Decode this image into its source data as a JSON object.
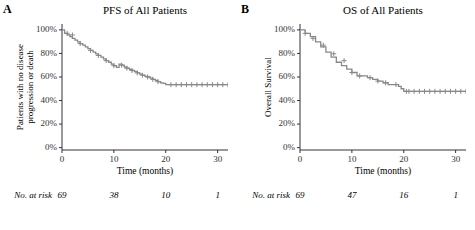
{
  "chart_data": [
    {
      "type": "line",
      "title": "PFS of All Patients",
      "annotations": [
        "A"
      ],
      "x_label": "Time (months)",
      "y_label": "Patients with no disease\nprogression or death",
      "xlim": [
        0,
        32
      ],
      "ylim": [
        -0.02,
        1.05
      ],
      "xticks": [
        0,
        10,
        20,
        30
      ],
      "yticks": [
        {
          "value": 0,
          "label": "0%"
        },
        {
          "value": 0.2,
          "label": "20%"
        },
        {
          "value": 0.4,
          "label": "40%"
        },
        {
          "value": 0.6,
          "label": "60%"
        },
        {
          "value": 0.8,
          "label": "80%"
        },
        {
          "value": 1.0,
          "label": "100%"
        }
      ],
      "grid": false,
      "series": [
        {
          "type": "step",
          "color": "#888888",
          "x": [
            0,
            0.5,
            1.0,
            1.5,
            2.0,
            2.5,
            3.0,
            3.5,
            4.0,
            4.5,
            5.0,
            5.5,
            6.0,
            6.5,
            7.0,
            7.5,
            8.0,
            8.5,
            9.0,
            9.5,
            10.0,
            10.5,
            11.0,
            11.5,
            12.0,
            12.5,
            13.0,
            13.5,
            14.0,
            14.5,
            15.0,
            15.5,
            16.0,
            16.5,
            17.0,
            17.5,
            18.0,
            18.5,
            19.0,
            19.5,
            20.0,
            21.0,
            22.0,
            23.0,
            24.0,
            25.0,
            26.0,
            27.0,
            28.0,
            29.0,
            30.0,
            31.0,
            32.0
          ],
          "values": [
            1.0,
            0.971,
            0.957,
            0.942,
            0.928,
            0.913,
            0.899,
            0.884,
            0.87,
            0.855,
            0.841,
            0.826,
            0.812,
            0.797,
            0.783,
            0.768,
            0.754,
            0.739,
            0.725,
            0.71,
            0.696,
            0.681,
            0.71,
            0.7,
            0.685,
            0.675,
            0.665,
            0.655,
            0.645,
            0.635,
            0.625,
            0.615,
            0.605,
            0.6,
            0.59,
            0.58,
            0.57,
            0.56,
            0.55,
            0.545,
            0.535,
            0.535,
            0.535,
            0.535,
            0.535,
            0.535,
            0.535,
            0.535,
            0.535,
            0.535,
            0.535,
            0.535,
            0.535
          ]
        },
        {
          "type": "scatter",
          "marker": "plus",
          "color": "#888888",
          "x": [
            1.0,
            2.0,
            3.5,
            5.5,
            7.0,
            8.5,
            10.0,
            11.5,
            12.5,
            13.5,
            14.5,
            15.5,
            16.5,
            17.5,
            18.5,
            21.0,
            22.0,
            23.0,
            24.0,
            25.0,
            26.0,
            27.0,
            28.0,
            29.0,
            30.0,
            31.0,
            32.0
          ],
          "values": [
            0.971,
            0.957,
            0.884,
            0.826,
            0.783,
            0.739,
            0.696,
            0.7,
            0.675,
            0.655,
            0.635,
            0.615,
            0.6,
            0.58,
            0.56,
            0.535,
            0.535,
            0.535,
            0.535,
            0.535,
            0.535,
            0.535,
            0.535,
            0.535,
            0.535,
            0.535,
            0.535
          ]
        }
      ],
      "at_risk": {
        "label": "No. at risk",
        "x": [
          0,
          10,
          20,
          30
        ],
        "values": [
          69,
          38,
          10,
          1
        ]
      }
    },
    {
      "type": "line",
      "title": "OS of All Patients",
      "annotations": [
        "B"
      ],
      "x_label": "Time (months)",
      "y_label": "Overall Survival",
      "xlim": [
        0,
        32
      ],
      "ylim": [
        -0.02,
        1.05
      ],
      "xticks": [
        0,
        10,
        20,
        30
      ],
      "yticks": [
        {
          "value": 0,
          "label": "0%"
        },
        {
          "value": 0.2,
          "label": "20%"
        },
        {
          "value": 0.4,
          "label": "40%"
        },
        {
          "value": 0.6,
          "label": "60%"
        },
        {
          "value": 0.8,
          "label": "80%"
        },
        {
          "value": 1.0,
          "label": "100%"
        }
      ],
      "grid": false,
      "series": [
        {
          "type": "step",
          "color": "#888888",
          "x": [
            0,
            1.0,
            2.0,
            3.0,
            4.0,
            5.0,
            6.0,
            7.0,
            8.0,
            9.0,
            10.0,
            11.0,
            12.0,
            13.0,
            14.0,
            15.0,
            16.0,
            17.0,
            18.0,
            19.0,
            19.5,
            20.0,
            21.0,
            22.0,
            23.0,
            24.0,
            25.0,
            26.0,
            27.0,
            28.0,
            29.0,
            30.0,
            31.0,
            32.0
          ],
          "values": [
            1.0,
            0.971,
            0.942,
            0.899,
            0.855,
            0.812,
            0.768,
            0.725,
            0.696,
            0.667,
            0.638,
            0.609,
            0.609,
            0.594,
            0.58,
            0.565,
            0.551,
            0.536,
            0.536,
            0.521,
            0.5,
            0.478,
            0.478,
            0.478,
            0.478,
            0.478,
            0.478,
            0.478,
            0.478,
            0.478,
            0.478,
            0.478,
            0.478,
            0.478
          ]
        },
        {
          "type": "scatter",
          "marker": "plus",
          "color": "#888888",
          "x": [
            1.0,
            2.5,
            4.5,
            6.5,
            8.5,
            10.0,
            11.5,
            13.5,
            15.0,
            16.5,
            18.5,
            20.5,
            21.0,
            22.0,
            23.0,
            24.0,
            25.0,
            26.0,
            27.0,
            28.0,
            29.0,
            30.0,
            31.0,
            32.0
          ],
          "values": [
            0.971,
            0.928,
            0.87,
            0.797,
            0.739,
            0.638,
            0.609,
            0.594,
            0.565,
            0.551,
            0.536,
            0.478,
            0.478,
            0.478,
            0.478,
            0.478,
            0.478,
            0.478,
            0.478,
            0.478,
            0.478,
            0.478,
            0.478,
            0.478
          ]
        }
      ],
      "at_risk": {
        "label": "No. at risk",
        "x": [
          0,
          10,
          20,
          30
        ],
        "values": [
          69,
          47,
          16,
          1
        ]
      }
    }
  ]
}
